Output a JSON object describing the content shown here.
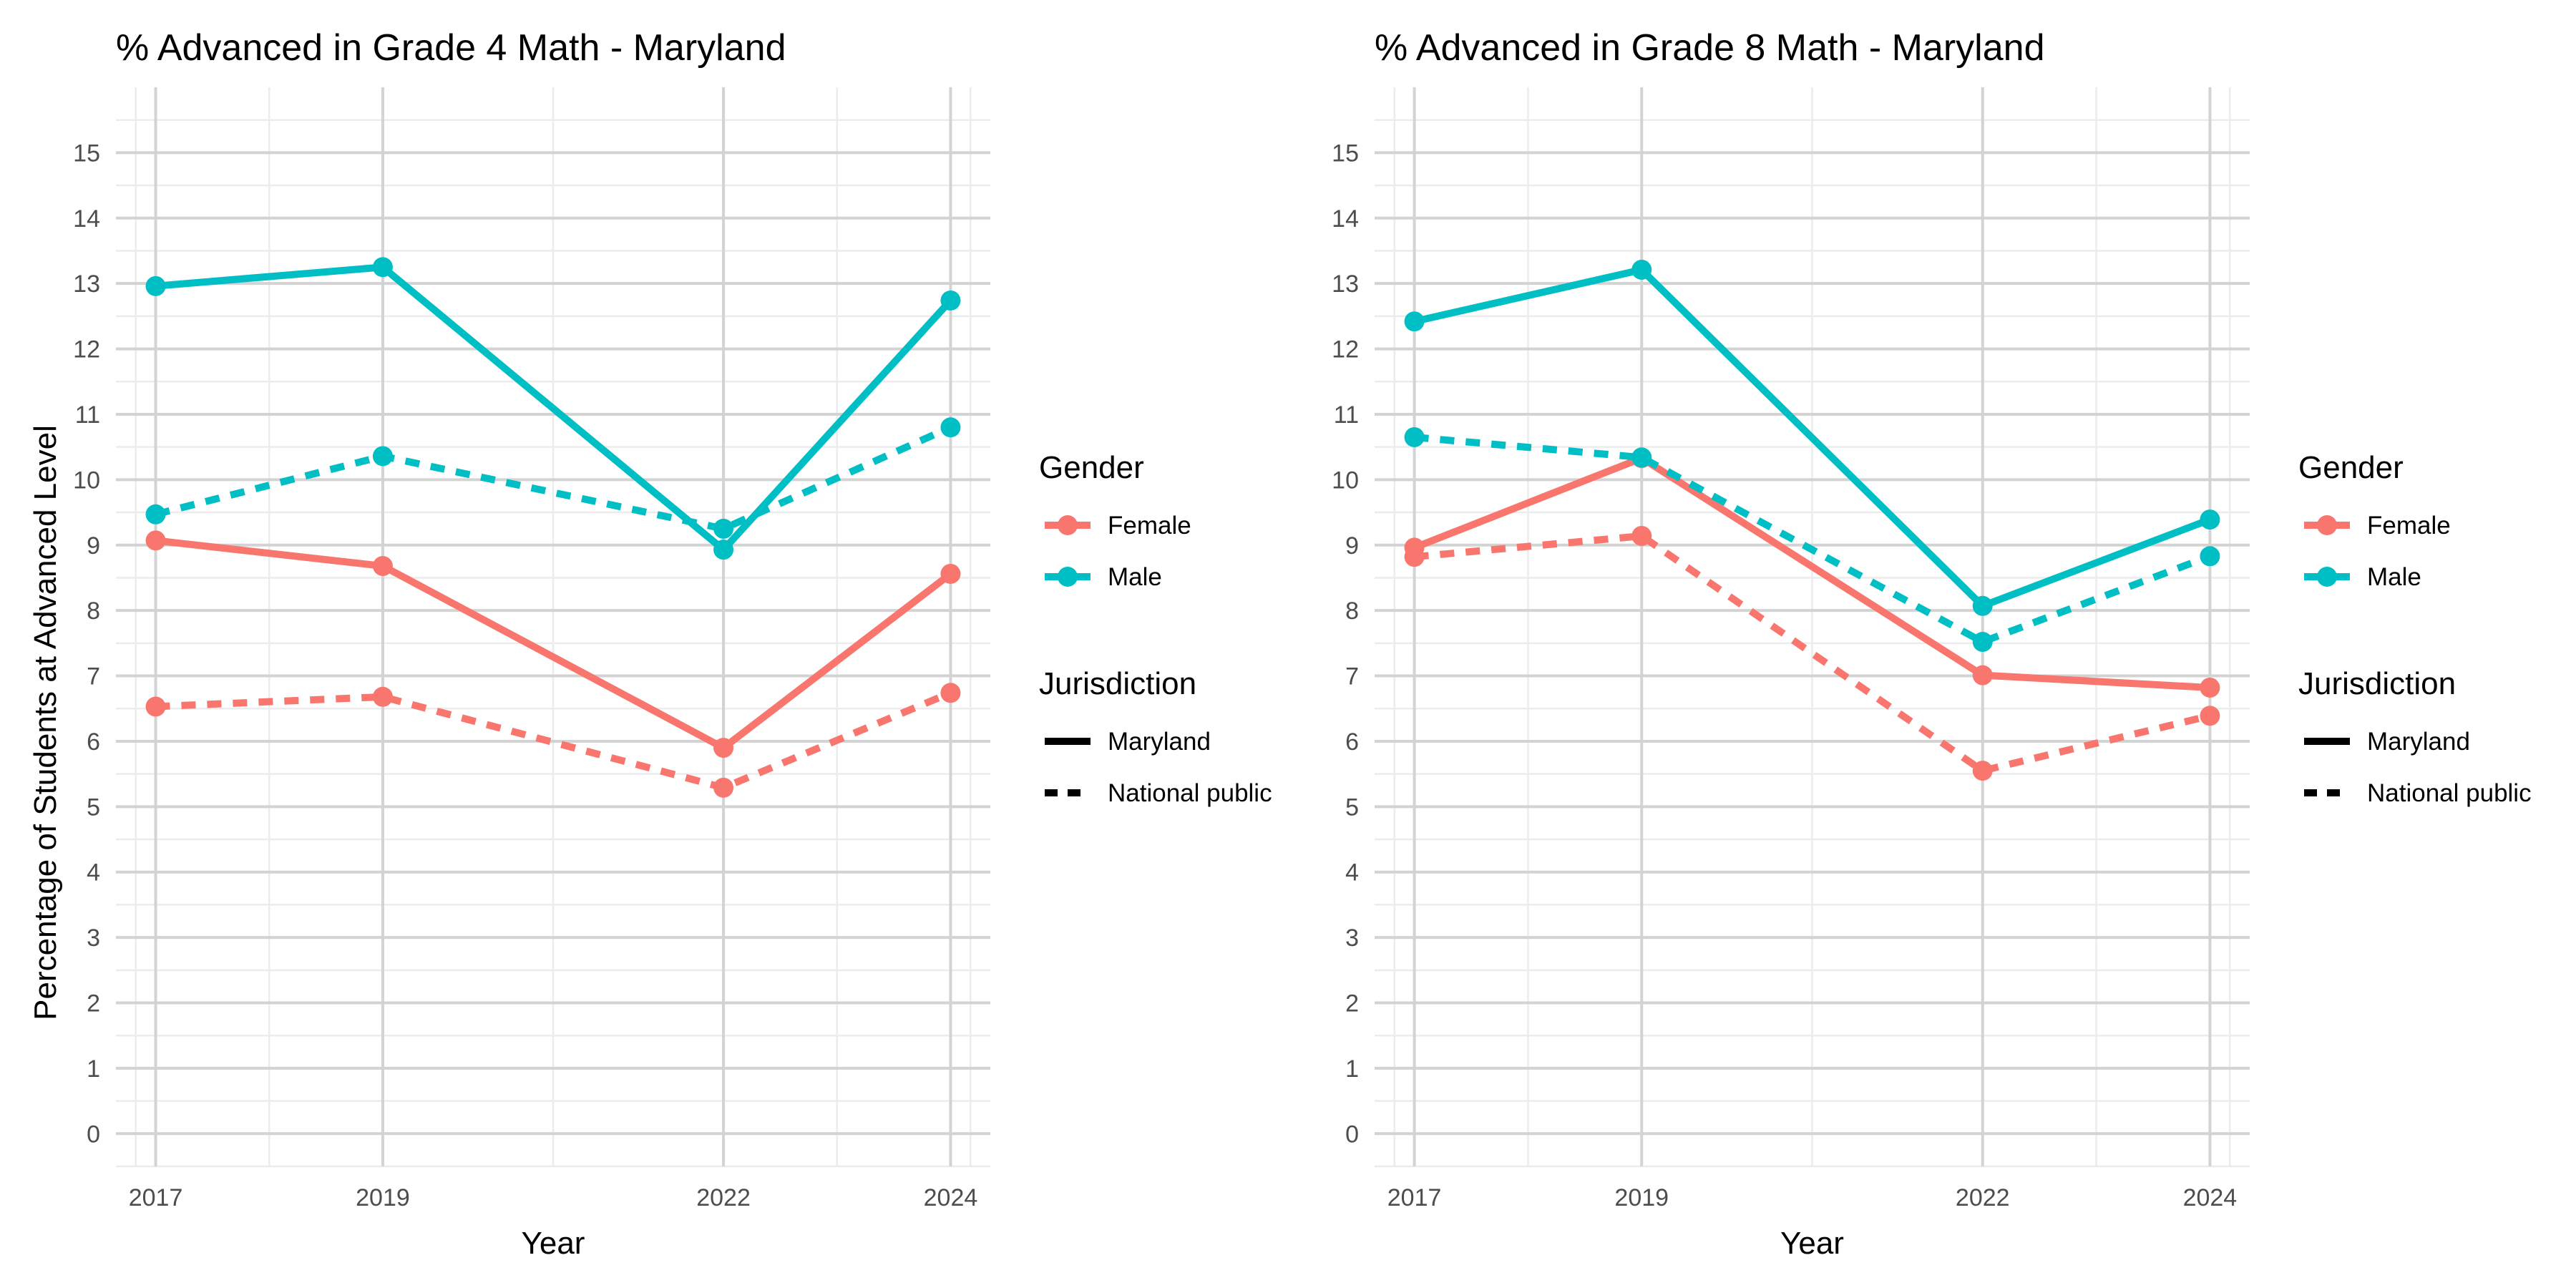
{
  "y_axis_label": "Percentage of Students at Advanced Level",
  "colors": {
    "Female": "#F8766D",
    "Male": "#00BFC4",
    "grid_major": "#d3d3d3",
    "grid_minor": "#ececec"
  },
  "legend": {
    "gender_title": "Gender",
    "gender_items": [
      "Female",
      "Male"
    ],
    "jurisdiction_title": "Jurisdiction",
    "jurisdiction_items": [
      "Maryland",
      "National public"
    ]
  },
  "chart_data": [
    {
      "type": "line",
      "title": "% Advanced in Grade 4 Math - Maryland",
      "xlabel": "Year",
      "ylabel": "Percentage of Students at Advanced Level",
      "x": [
        2017,
        2019,
        2022,
        2024
      ],
      "x_ticks": [
        2017,
        2019,
        2022,
        2024
      ],
      "xlim": [
        2016.65,
        2024.35
      ],
      "ylim": [
        -0.5,
        16
      ],
      "y_ticks": [
        0,
        1,
        2,
        3,
        4,
        5,
        6,
        7,
        8,
        9,
        10,
        11,
        12,
        13,
        14,
        15
      ],
      "grid": true,
      "legend_position": "right",
      "series": [
        {
          "gender": "Female",
          "jurisdiction": "Maryland",
          "values": [
            9.07,
            8.68,
            5.9,
            8.56
          ]
        },
        {
          "gender": "Female",
          "jurisdiction": "National public",
          "values": [
            6.53,
            6.68,
            5.29,
            6.74
          ]
        },
        {
          "gender": "Male",
          "jurisdiction": "Maryland",
          "values": [
            12.96,
            13.25,
            8.93,
            12.74
          ]
        },
        {
          "gender": "Male",
          "jurisdiction": "National public",
          "values": [
            9.47,
            10.36,
            9.25,
            10.8
          ]
        }
      ]
    },
    {
      "type": "line",
      "title": "% Advanced in Grade 8 Math - Maryland",
      "xlabel": "Year",
      "ylabel": "",
      "x": [
        2017,
        2019,
        2022,
        2024
      ],
      "x_ticks": [
        2017,
        2019,
        2022,
        2024
      ],
      "xlim": [
        2016.65,
        2024.35
      ],
      "ylim": [
        -0.5,
        16
      ],
      "y_ticks": [
        0,
        1,
        2,
        3,
        4,
        5,
        6,
        7,
        8,
        9,
        10,
        11,
        12,
        13,
        14,
        15
      ],
      "grid": true,
      "legend_position": "right",
      "series": [
        {
          "gender": "Female",
          "jurisdiction": "Maryland",
          "values": [
            8.96,
            10.33,
            7.01,
            6.82
          ]
        },
        {
          "gender": "Female",
          "jurisdiction": "National public",
          "values": [
            8.82,
            9.14,
            5.55,
            6.39
          ]
        },
        {
          "gender": "Male",
          "jurisdiction": "Maryland",
          "values": [
            12.42,
            13.21,
            8.07,
            9.39
          ]
        },
        {
          "gender": "Male",
          "jurisdiction": "National public",
          "values": [
            10.65,
            10.34,
            7.52,
            8.83
          ]
        }
      ]
    }
  ]
}
